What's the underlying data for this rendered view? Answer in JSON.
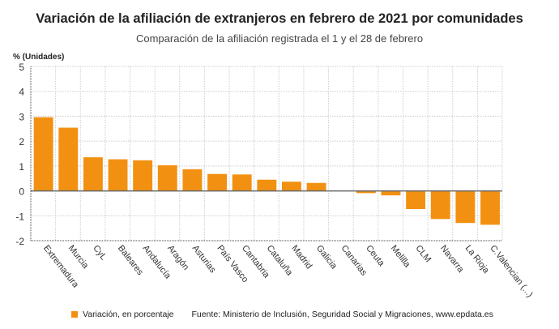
{
  "chart_data": {
    "type": "bar",
    "title": "Variación de la afiliación de extranjeros en febrero de 2021 por comunidades",
    "subtitle": "Comparación de la afiliación registrada el 1 y el 28 de febrero",
    "ylabel": "% (Unidades)",
    "xlabel": "",
    "ylim": [
      -2,
      5
    ],
    "yticks": [
      5,
      4,
      3,
      2,
      1,
      0,
      -1,
      -2
    ],
    "grid": true,
    "color": "#f29111",
    "categories": [
      "Extremadura",
      "Murcia",
      "CyL",
      "Baleares",
      "Andalucía",
      "Aragón",
      "Asturias",
      "País Vasco",
      "Cantabria",
      "Cataluña",
      "Madrid",
      "Galicia",
      "Canarias",
      "Ceuta",
      "Melilla",
      "CLM",
      "Navarra",
      "La Rioja",
      "C.Valencian (...)"
    ],
    "series": [
      {
        "name": "Variación, en porcentaje",
        "values": [
          2.96,
          2.54,
          1.35,
          1.27,
          1.23,
          1.03,
          0.87,
          0.68,
          0.66,
          0.45,
          0.37,
          0.32,
          0.01,
          -0.09,
          -0.18,
          -0.73,
          -1.13,
          -1.29,
          -1.36
        ]
      }
    ],
    "legend_position": "bottom-left",
    "source": "Fuente: Ministerio de Inclusión, Seguridad Social y Migraciones, www.epdata.es"
  }
}
